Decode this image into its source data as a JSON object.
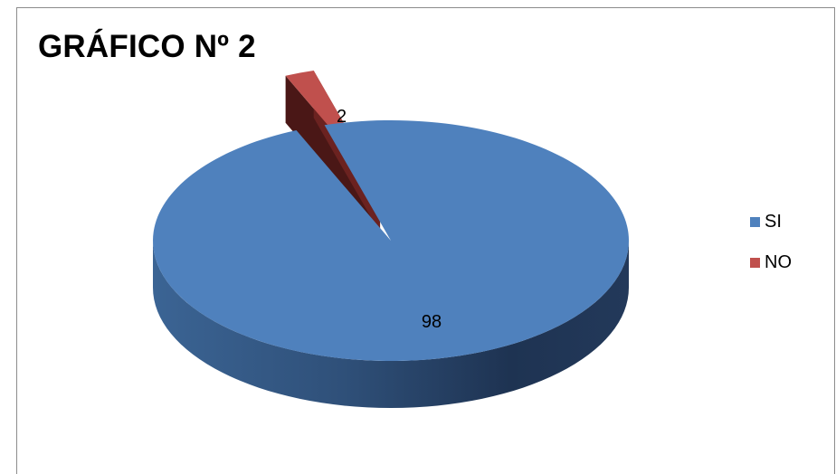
{
  "chart_data": {
    "type": "pie",
    "title": "GRÁFICO Nº 2",
    "categories": [
      "SI",
      "NO"
    ],
    "values": [
      98,
      2
    ],
    "data_labels": [
      "98",
      "2"
    ],
    "colors": [
      "#4F81BD",
      "#C0504D"
    ],
    "legend_placement": "right",
    "style": "3d-exploded"
  }
}
